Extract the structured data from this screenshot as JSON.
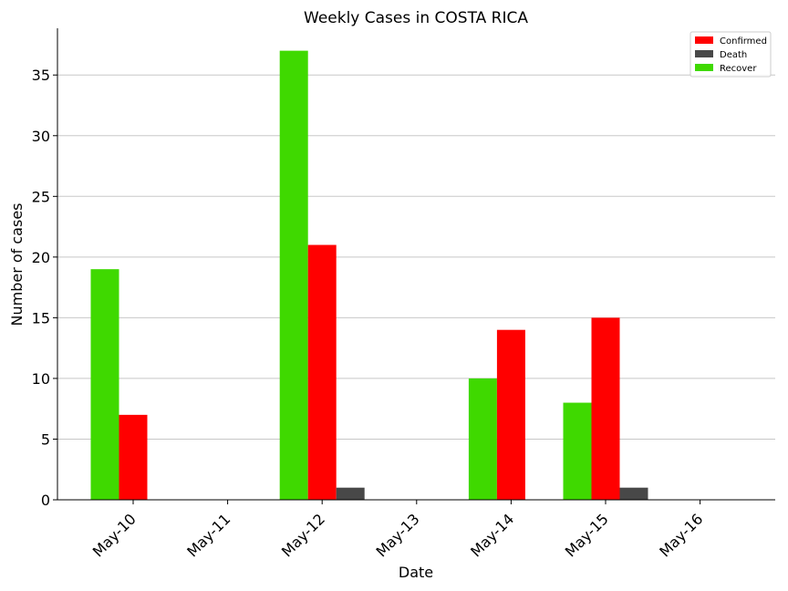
{
  "chart_data": {
    "type": "bar",
    "title": "Weekly Cases in COSTA RICA",
    "xlabel": "Date",
    "ylabel": "Number of cases",
    "categories": [
      "May-10",
      "May-11",
      "May-12",
      "May-13",
      "May-14",
      "May-15",
      "May-16"
    ],
    "series": [
      {
        "name": "Recover",
        "color": "#3fd900",
        "values": [
          19,
          0,
          37,
          0,
          10,
          8,
          0
        ]
      },
      {
        "name": "Confirmed",
        "color": "#ff0000",
        "values": [
          7,
          0,
          21,
          0,
          14,
          15,
          0
        ]
      },
      {
        "name": "Death",
        "color": "#484848",
        "values": [
          0,
          0,
          1,
          0,
          0,
          1,
          0
        ]
      }
    ],
    "legend_order": [
      "Confirmed",
      "Death",
      "Recover"
    ],
    "legend_position": "top-right",
    "ylim": [
      0,
      38.85
    ],
    "yticks": [
      0,
      5,
      10,
      15,
      20,
      25,
      30,
      35
    ],
    "grid": "y"
  }
}
